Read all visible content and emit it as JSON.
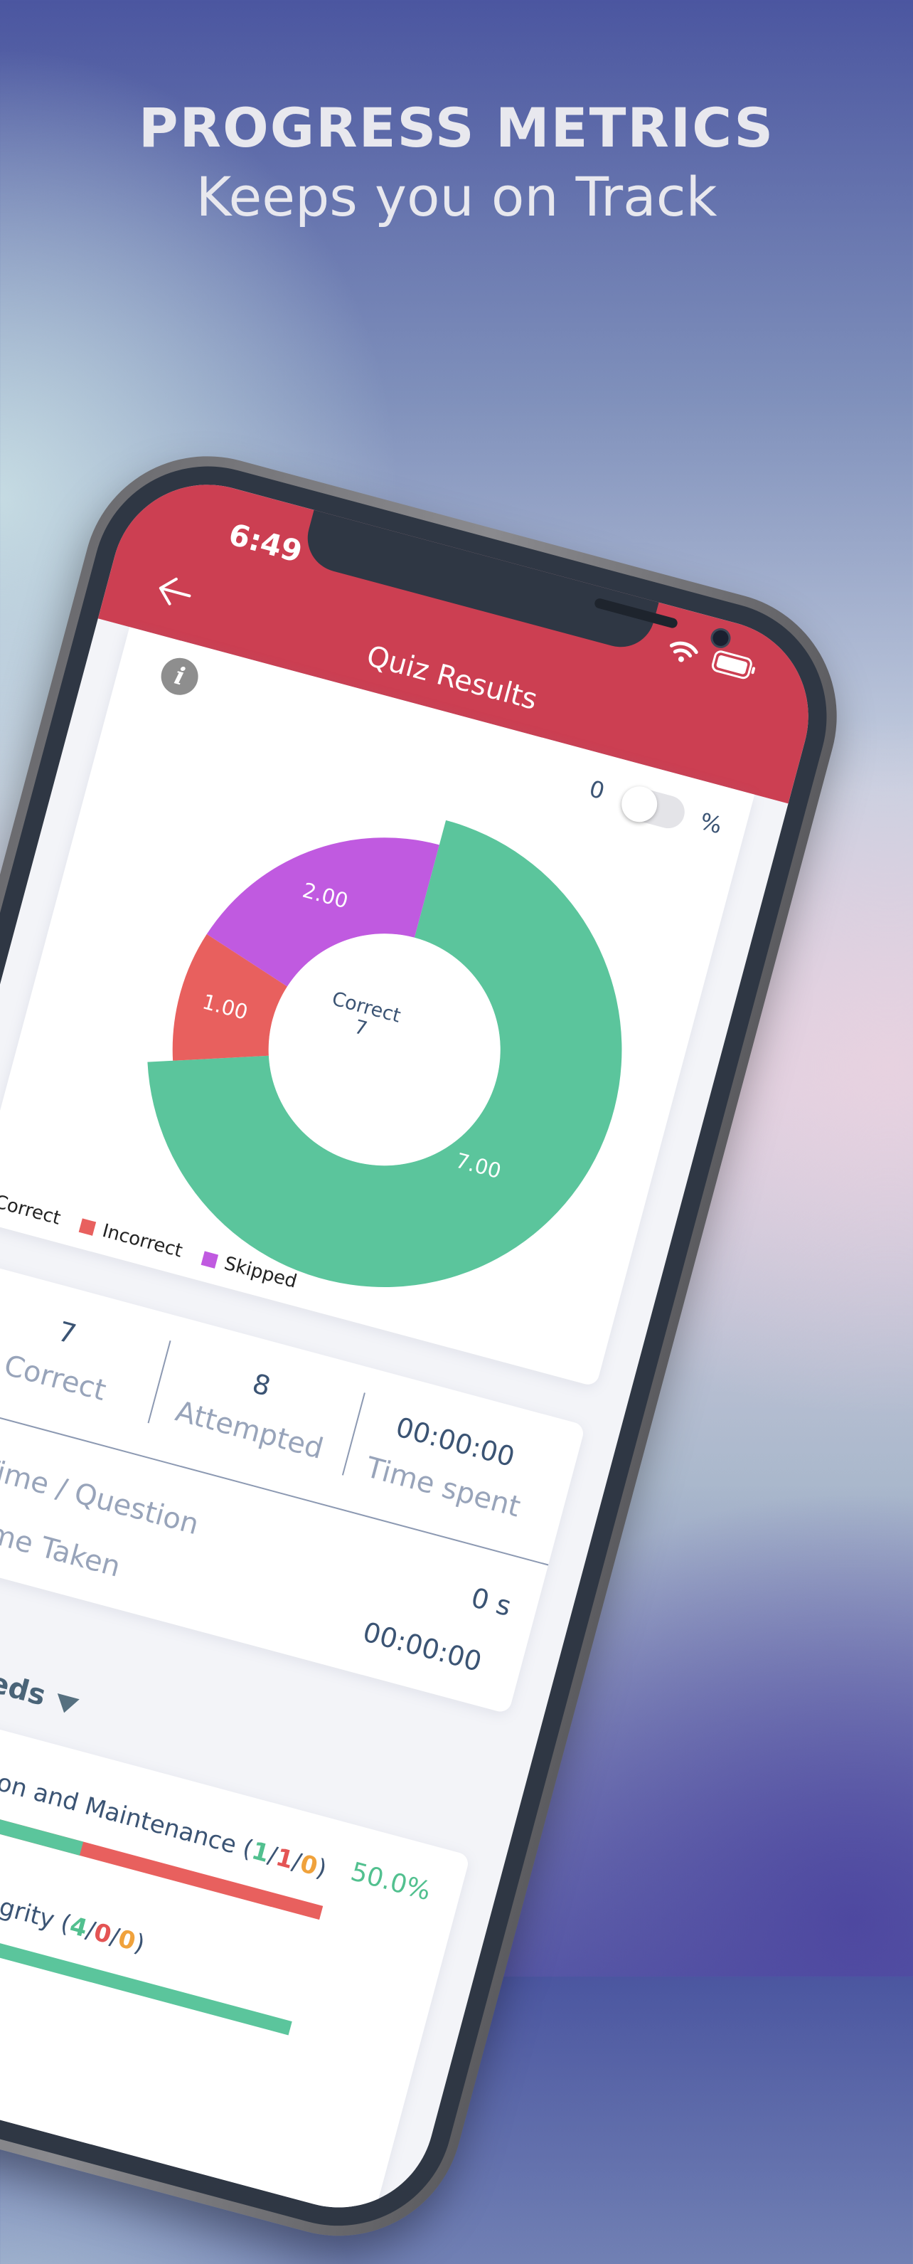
{
  "promo": {
    "headline": "PROGRESS METRICS",
    "subheadline": "Keeps you on Track"
  },
  "status_bar": {
    "time": "6:49",
    "icons": [
      "wifi-icon",
      "battery-icon"
    ]
  },
  "header": {
    "title": "Quiz Results",
    "back_icon": "arrow-left-icon",
    "color": "#cc3f52"
  },
  "chart_card": {
    "info_icon": "info-icon",
    "toggle": {
      "left_label": "0",
      "right_label": "%",
      "on": false
    },
    "center_label": "Correct",
    "center_value": "7"
  },
  "chart_data": {
    "type": "pie",
    "donut": true,
    "categories": [
      "Correct",
      "Incorrect",
      "Skipped"
    ],
    "values": [
      7,
      1,
      2
    ],
    "labels": [
      "7.00",
      "1.00",
      "2.00"
    ],
    "colors": [
      "#5bc59c",
      "#e8605e",
      "#c05ae0"
    ],
    "highlighted": "Correct",
    "legend": [
      "Correct",
      "Incorrect",
      "Skipped"
    ],
    "legend_position": "bottom-left"
  },
  "stats": {
    "correct": {
      "value": "7",
      "label": "Correct"
    },
    "attempted": {
      "value": "8",
      "label": "Attempted"
    },
    "time_spent": {
      "value": "00:00:00",
      "label": "Time spent"
    },
    "time_per_question": {
      "label": "Time / Question",
      "value": "0 s"
    },
    "time_taken": {
      "label": "Time Taken",
      "value": "00:00:00"
    }
  },
  "section": {
    "title": "eds",
    "caret_icon": "triangle-down-icon"
  },
  "topics": [
    {
      "name": "ption and Maintenance",
      "correct": "1",
      "incorrect": "1",
      "skipped": "0",
      "percent": "50.0%",
      "fraction_correct": 0.5
    },
    {
      "name": "egrity",
      "correct": "4",
      "incorrect": "0",
      "skipped": "0",
      "fraction_correct": 1.0
    }
  ]
}
